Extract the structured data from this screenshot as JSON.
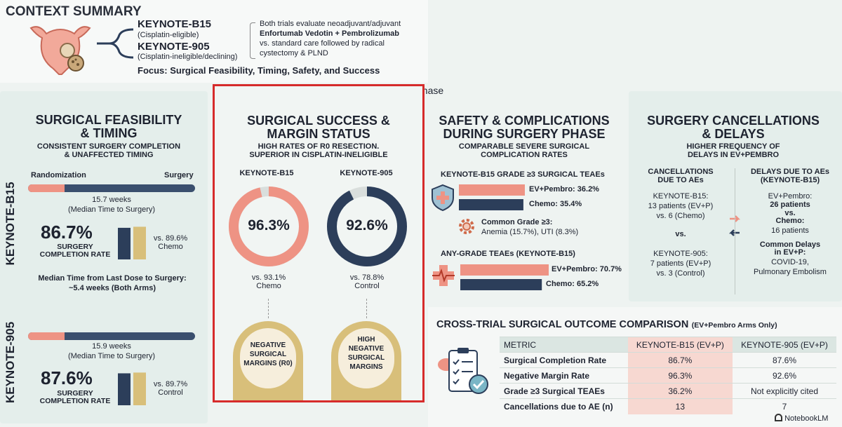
{
  "context": {
    "title": "CONTEXT SUMMARY",
    "trial1_name": "KEYNOTE-B15",
    "trial1_sub": "(Cisplatin-eligible)",
    "trial2_name": "KEYNOTE-905",
    "trial2_sub": "(Cisplatin-ineligible/declining)",
    "desc": [
      "Both trials evaluate neoadjuvant/adjuvant",
      "Enfortumab Vedotin + Pembrolizumab",
      "vs. standard care followed by radical",
      "cystectomy & PLND"
    ],
    "focus": "Focus: Surgical Feasibility, Timing, Safety, and Success",
    "phase_label": "Surgical Phase"
  },
  "feasibility": {
    "title1": "SURGICAL FEASIBILITY",
    "title2": "& TIMING",
    "sub1": "CONSISTENT SURGERY COMPLETION",
    "sub2": "& UNAFFECTED TIMING",
    "left_label": "Randomization",
    "right_label": "Surgery",
    "b15": {
      "side_label": "KEYNOTE-B15",
      "weeks": "15.7 weeks",
      "weeks_sub": "(Median Time to Surgery)",
      "timeline_fill": 0.22,
      "rate": "86.7%",
      "rate_label1": "SURGERY",
      "rate_label2": "COMPLETION RATE",
      "compare1": "vs. 89.6%",
      "compare2": "Chemo",
      "bar_a": 86.7,
      "bar_b": 89.6,
      "lastdose1": "Median Time from Last Dose to Surgery:",
      "lastdose2": "~5.4 weeks (Both Arms)"
    },
    "k905": {
      "side_label": "KEYNOTE-905",
      "weeks": "15.9 weeks",
      "weeks_sub": "(Median Time to Surgery)",
      "timeline_fill": 0.22,
      "rate": "87.6%",
      "rate_label1": "SURGERY",
      "rate_label2": "COMPLETION RATE",
      "compare1": "vs. 89.7%",
      "compare2": "Control",
      "bar_a": 87.6,
      "bar_b": 89.7
    }
  },
  "success": {
    "title1": "SURGICAL SUCCESS &",
    "title2": "MARGIN STATUS",
    "sub1": "HIGH RATES OF R0 RESECTION.",
    "sub2": "SUPERIOR IN CISPLATIN-INELIGIBLE",
    "b15_label": "KEYNOTE-B15",
    "k905_label": "KEYNOTE-905",
    "b15_value": "96.3%",
    "k905_value": "92.6%",
    "b15_vs1": "vs. 93.1%",
    "b15_vs2": "Chemo",
    "k905_vs1": "vs. 78.8%",
    "k905_vs2": "Control",
    "b15_pillar": [
      "NEGATIVE",
      "SURGICAL",
      "MARGINS (R0)"
    ],
    "k905_pillar": [
      "HIGH",
      "NEGATIVE",
      "SURGICAL",
      "MARGINS"
    ]
  },
  "safety": {
    "title1": "SAFETY & COMPLICATIONS",
    "title2": "DURING SURGERY PHASE",
    "sub1": "COMPARABLE SEVERE SURGICAL",
    "sub2": "COMPLICATION RATES",
    "grade3_title": "KEYNOTE-B15 GRADE ≥3 SURGICAL TEAEs",
    "g3_ev": "EV+Pembro: 36.2%",
    "g3_chemo": "Chemo: 35.4%",
    "common1": "Common Grade ≥3:",
    "common2": "Anemia (15.7%), UTI (8.3%)",
    "any_title": "ANY-GRADE TEAEs (KEYNOTE-B15)",
    "any_ev": "EV+Pembro: 70.7%",
    "any_chemo": "Chemo: 65.2%"
  },
  "cancellations": {
    "title1": "SURGERY CANCELLATIONS",
    "title2": "& DELAYS",
    "sub1": "HIGHER FREQUENCY OF",
    "sub2": "DELAYS IN EV+PEMBRO",
    "left_h1": "CANCELLATIONS",
    "left_h2": "DUE TO AEs",
    "b15_1": "KEYNOTE-B15:",
    "b15_2": "13 patients (EV+P)",
    "b15_3": "vs. 6 (Chemo)",
    "vs": "vs.",
    "k905_1": "KEYNOTE-905:",
    "k905_2": "7 patients (EV+P)",
    "k905_3": "vs. 3 (Control)",
    "right_h1": "DELAYS DUE TO AEs",
    "right_h2": "(KEYNOTE-B15)",
    "d1": "EV+Pembro:",
    "d2": "26 patients",
    "d3": "vs.",
    "d4": "Chemo:",
    "d5": "16 patients",
    "d6": "Common Delays",
    "d7": "in EV+P:",
    "d8": "COVID-19,",
    "d9": "Pulmonary Embolism"
  },
  "comparison": {
    "title": "CROSS-TRIAL SURGICAL OUTCOME COMPARISON",
    "title_sub": "(EV+Pembro Arms Only)",
    "headers": [
      "METRIC",
      "KEYNOTE-B15 (EV+P)",
      "KEYNOTE-905 (EV+P)"
    ],
    "rows": [
      [
        "Surgical Completion Rate",
        "86.7%",
        "87.6%"
      ],
      [
        "Negative Margin Rate",
        "96.3%",
        "92.6%"
      ],
      [
        "Grade ≥3 Surgical TEAEs",
        "36.2%",
        "Not explicitly cited"
      ],
      [
        "Cancellations due to AE (n)",
        "13",
        "7"
      ]
    ]
  },
  "footer": {
    "brand": "NotebookLM"
  },
  "chart_data": [
    {
      "type": "pie",
      "title": "",
      "categories": [
        "KEYNOTE-B15",
        "KEYNOTE-905"
      ],
      "series": [
        {
          "values": [
            96.3,
            92.6
          ]
        }
      ],
      "annotations": [
        "vs. 93.1% Chemo",
        "vs. 78.8% Control"
      ]
    },
    {
      "type": "bar",
      "title": "KEYNOTE-B15 GRADE ≥3 SURGICAL TEAEs",
      "categories": [
        "EV+Pembro",
        "Chemo"
      ],
      "values": [
        36.2,
        35.4
      ]
    },
    {
      "type": "bar",
      "title": "ANY-GRADE TEAEs (KEYNOTE-B15)",
      "categories": [
        "EV+Pembro",
        "Chemo"
      ],
      "values": [
        70.7,
        65.2
      ]
    },
    {
      "type": "bar",
      "title": "",
      "categories": [
        "KEYNOTE-B15",
        "KEYNOTE-905"
      ],
      "series": [
        {
          "name": "",
          "values": [
            86.7,
            87.6
          ]
        },
        {
          "name": "",
          "values": [
            89.6,
            89.7
          ]
        }
      ]
    },
    {
      "type": "table",
      "title": "CROSS-TRIAL SURGICAL OUTCOME COMPARISON",
      "columns": [
        "METRIC",
        "KEYNOTE-B15 (EV+P)",
        "KEYNOTE-905 (EV+P)"
      ],
      "rows": [
        [
          "Surgical Completion Rate",
          "86.7%",
          "87.6%"
        ],
        [
          "Negative Margin Rate",
          "96.3%",
          "92.6%"
        ],
        [
          "Grade ≥3 Surgical TEAEs",
          "36.2%",
          "Not explicitly cited"
        ],
        [
          "Cancellations due to AE (n)",
          "13",
          "7"
        ]
      ]
    }
  ],
  "colors": {
    "salmon": "#ee9384",
    "navy": "#2c3e5a",
    "gold": "#d8bf7a",
    "highlight": "#d62b2b",
    "bg": "#eef3f1"
  }
}
